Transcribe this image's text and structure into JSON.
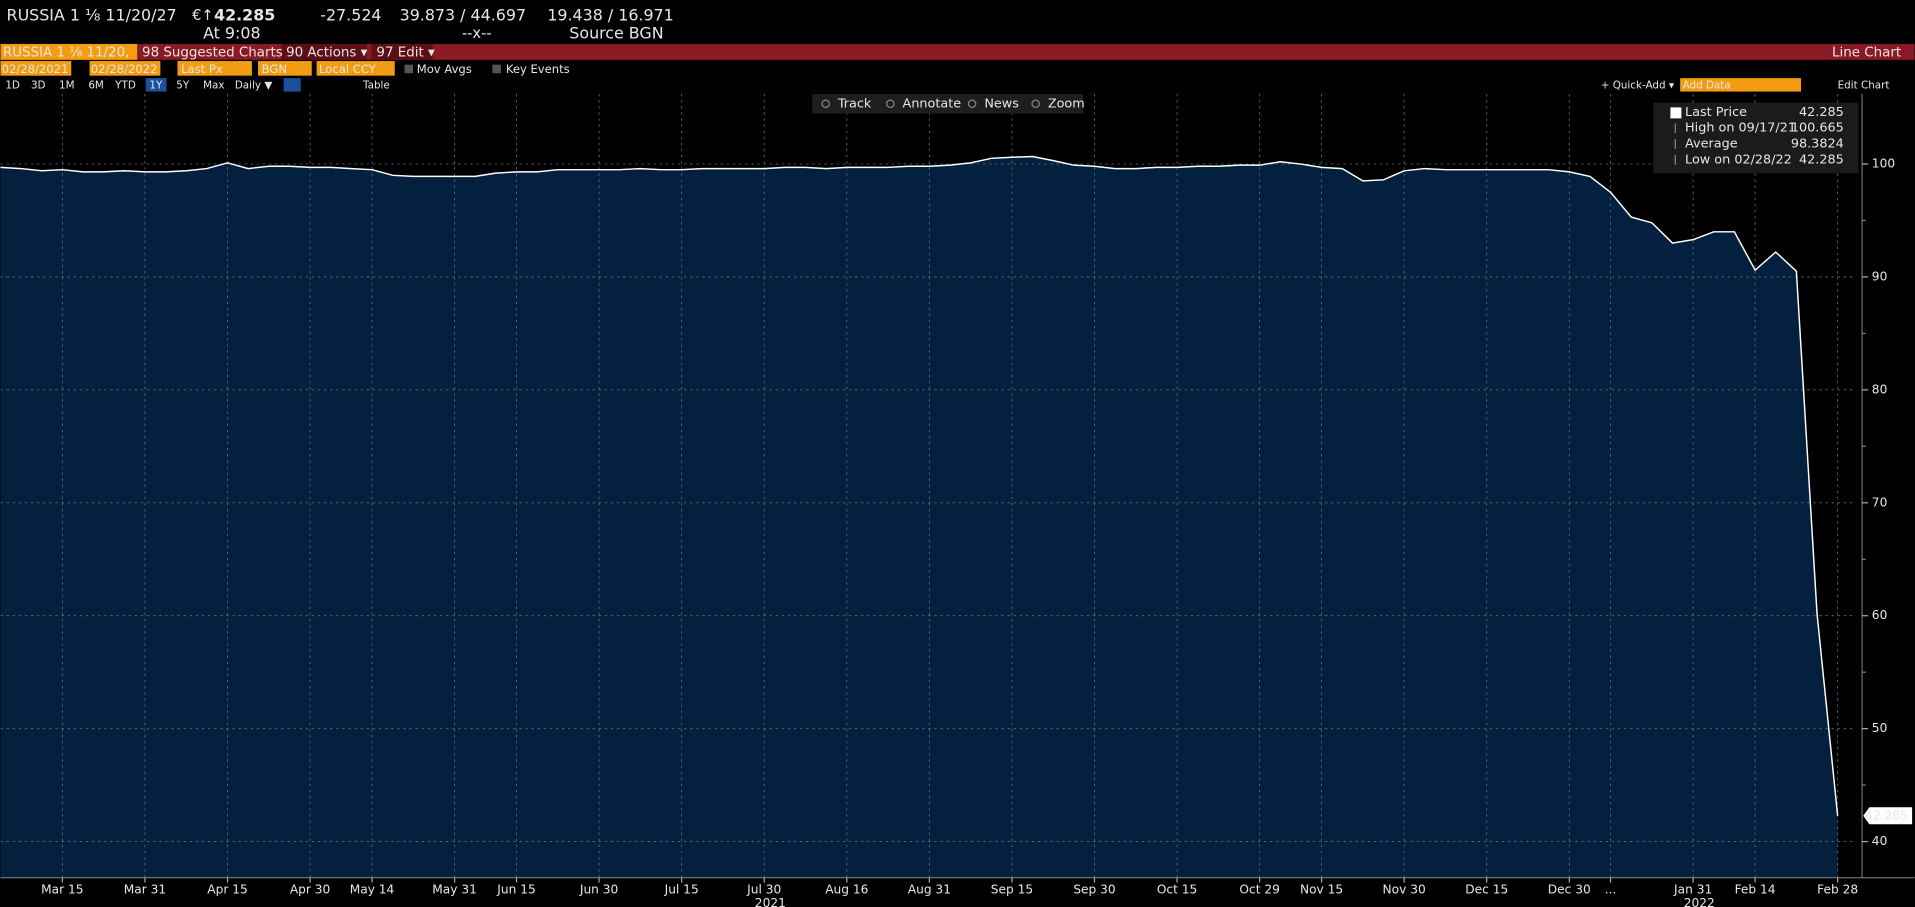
{
  "header": {
    "security": "RUSSIA 1 ⅛ 11/20/27",
    "currency": "€↑",
    "price": "42.285",
    "change": "-27.524",
    "bid_ask": "39.873 / 44.697",
    "yields": "19.438 / 16.971",
    "time": "At 9:08",
    "size": "--x--",
    "source": "Source BGN"
  },
  "menu": {
    "security": "RUSSIA 1 ⅛ 11/20,",
    "suggested": "98 Suggested Charts",
    "actions": "90 Actions ▾",
    "edit": "97 Edit ▾",
    "chart_type": "Line Chart"
  },
  "settings": {
    "start": "02/28/2021",
    "end": "02/28/2022",
    "field": "Last Px",
    "source": "BGN",
    "currency": "Local CCY",
    "mov_avgs": "Mov Avgs",
    "key_events": "Key Events"
  },
  "periods": [
    "1D",
    "3D",
    "1M",
    "6M",
    "YTD",
    "1Y",
    "5Y",
    "Max"
  ],
  "active_period": 5,
  "frequency": "Daily ▼",
  "table": "Table",
  "quick_add": "+ Quick-Add ▾",
  "add_data": "Add Data",
  "edit_chart": "Edit Chart",
  "tools": [
    "Track",
    "Annotate",
    "News",
    "Zoom"
  ],
  "chart_data": {
    "type": "line",
    "x": [
      null,
      null,
      null,
      "Mar 15",
      null,
      null,
      null,
      "Mar 31",
      null,
      null,
      null,
      "Apr 15",
      null,
      null,
      null,
      "Apr 30",
      null,
      null,
      "May 14",
      null,
      null,
      null,
      "May 31",
      null,
      null,
      "Jun 15",
      null,
      null,
      null,
      "Jun 30",
      null,
      null,
      null,
      "Jul 15",
      null,
      null,
      null,
      "Jul 30",
      null,
      null,
      null,
      "Aug 16",
      null,
      null,
      null,
      "Aug 31",
      null,
      null,
      null,
      "Sep 15",
      null,
      null,
      null,
      "Sep 30",
      null,
      null,
      null,
      "Oct 15",
      null,
      null,
      null,
      "Oct 29",
      null,
      null,
      "Nov 15",
      null,
      null,
      null,
      "Nov 30",
      null,
      null,
      null,
      "Dec 15",
      null,
      null,
      null,
      "Dec 30",
      null,
      "...",
      null,
      null,
      null,
      "Jan 31",
      null,
      null,
      "Feb 14",
      null,
      null,
      null,
      "Feb 28"
    ],
    "year_labels": [
      "2021",
      "2022"
    ],
    "series": [
      {
        "name": "Last Price",
        "color": "#ffffff",
        "values": [
          99.7,
          99.6,
          99.4,
          99.5,
          99.3,
          99.3,
          99.4,
          99.3,
          99.3,
          99.4,
          99.6,
          100.1,
          99.6,
          99.8,
          99.8,
          99.7,
          99.7,
          99.6,
          99.5,
          99.0,
          98.9,
          98.9,
          98.9,
          98.9,
          99.2,
          99.3,
          99.3,
          99.5,
          99.5,
          99.5,
          99.5,
          99.6,
          99.5,
          99.5,
          99.6,
          99.6,
          99.6,
          99.6,
          99.7,
          99.7,
          99.6,
          99.7,
          99.7,
          99.7,
          99.8,
          99.8,
          99.9,
          100.1,
          100.5,
          100.6,
          100.665,
          100.3,
          99.9,
          99.8,
          99.6,
          99.6,
          99.7,
          99.7,
          99.8,
          99.8,
          99.9,
          99.9,
          100.2,
          100.0,
          99.7,
          99.6,
          98.5,
          98.6,
          99.4,
          99.6,
          99.5,
          99.5,
          99.5,
          99.5,
          99.5,
          99.5,
          99.3,
          98.9,
          97.5,
          95.3,
          94.8,
          93.0,
          93.3,
          94.0,
          94.0,
          90.6,
          92.2,
          90.5,
          60.2,
          42.285
        ]
      }
    ],
    "fill_color": "#03203f",
    "ylim": [
      36.8,
      106.2
    ],
    "yticks": [
      40,
      50,
      60,
      70,
      80,
      90,
      100
    ],
    "grid": true,
    "legend_stats": [
      {
        "label": "High on 09/17/21",
        "value": "100.665"
      },
      {
        "label": "Average",
        "value": "98.3824"
      },
      {
        "label": "Low on 02/28/22",
        "value": "42.285"
      }
    ]
  }
}
